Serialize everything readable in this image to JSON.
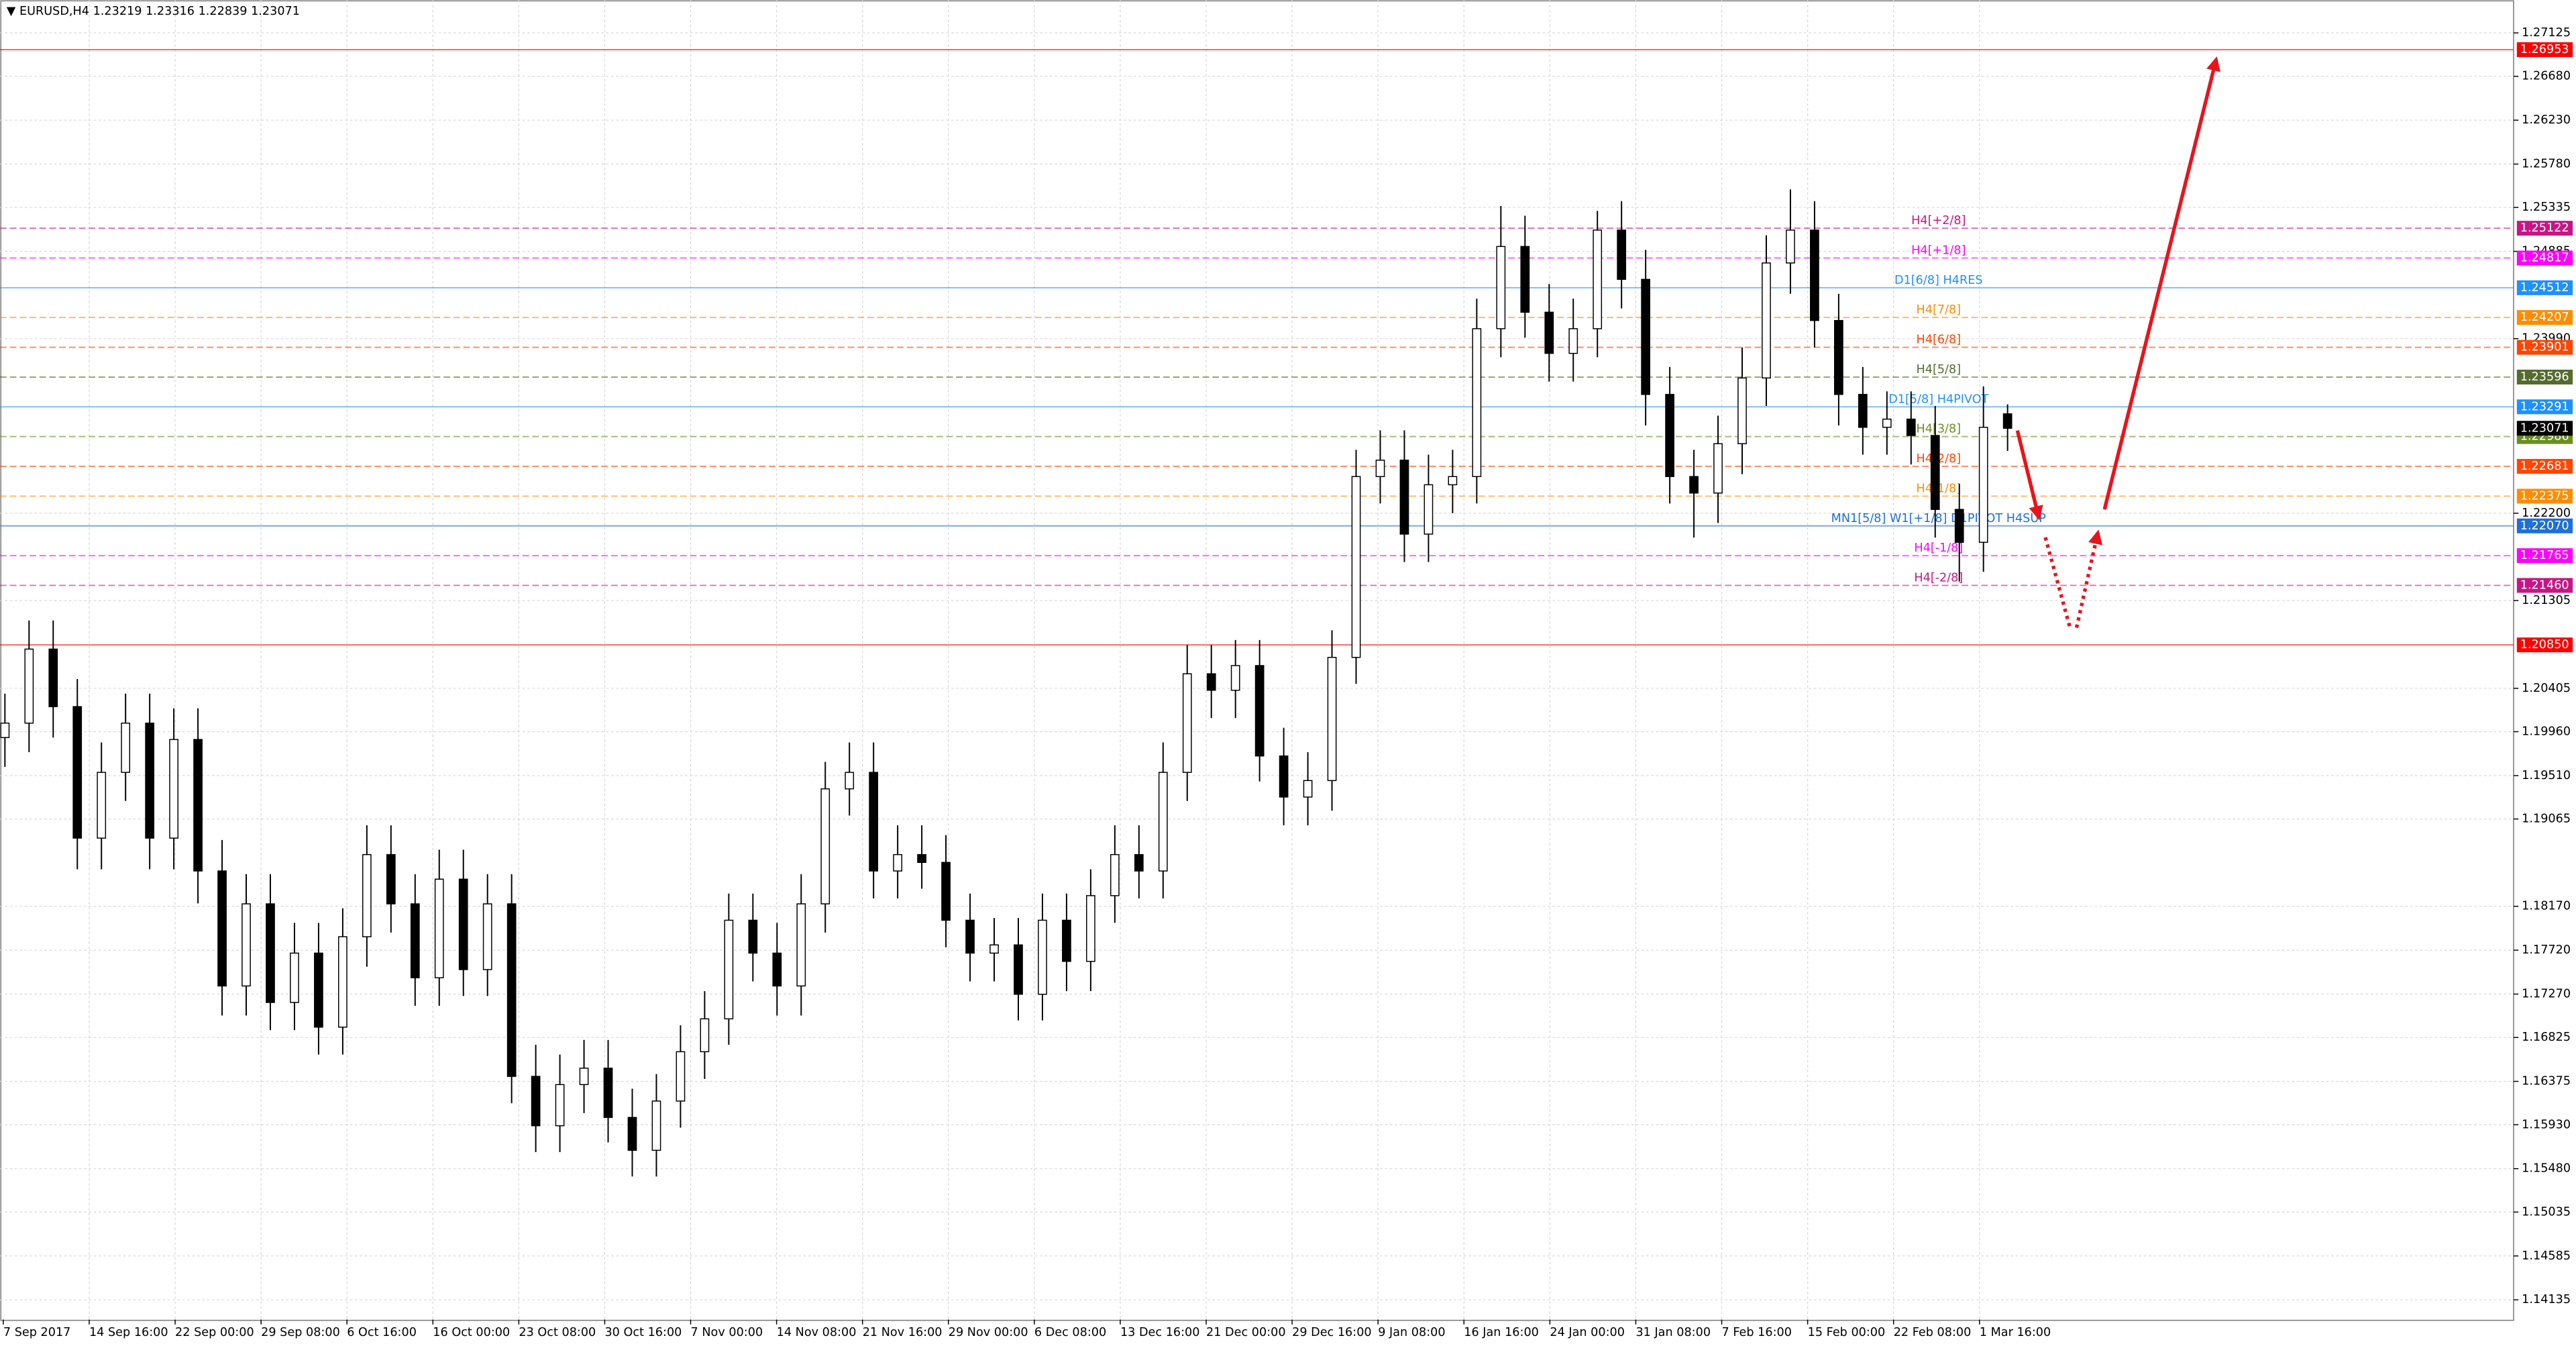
{
  "chart_data": {
    "type": "candlestick",
    "title": "EURUSD,H4",
    "ylim": [
      1.27462,
      1.13933
    ],
    "yticks": [
      {
        "value": 1.27125,
        "label": "1.27125"
      },
      {
        "value": 1.2668,
        "label": "1.26680"
      },
      {
        "value": 1.2623,
        "label": "1.26230"
      },
      {
        "value": 1.2578,
        "label": "1.25780"
      },
      {
        "value": 1.25335,
        "label": "1.25335"
      },
      {
        "value": 1.24885,
        "label": "1.24885"
      },
      {
        "value": 1.2399,
        "label": "1.23990"
      },
      {
        "value": 1.222,
        "label": "1.22200"
      },
      {
        "value": 1.21305,
        "label": "1.21305"
      },
      {
        "value": 1.20405,
        "label": "1.20405"
      },
      {
        "value": 1.1996,
        "label": "1.19960"
      },
      {
        "value": 1.1951,
        "label": "1.19510"
      },
      {
        "value": 1.19065,
        "label": "1.19065"
      },
      {
        "value": 1.1817,
        "label": "1.18170"
      },
      {
        "value": 1.1772,
        "label": "1.17720"
      },
      {
        "value": 1.1727,
        "label": "1.17270"
      },
      {
        "value": 1.16825,
        "label": "1.16825"
      },
      {
        "value": 1.16375,
        "label": "1.16375"
      },
      {
        "value": 1.1593,
        "label": "1.15930"
      },
      {
        "value": 1.1548,
        "label": "1.15480"
      },
      {
        "value": 1.15035,
        "label": "1.15035"
      },
      {
        "value": 1.14585,
        "label": "1.14585"
      },
      {
        "value": 1.14135,
        "label": "1.14135"
      }
    ],
    "xticks": [
      "7 Sep 2017",
      "14 Sep 16:00",
      "22 Sep 00:00",
      "29 Sep 08:00",
      "6 Oct 16:00",
      "16 Oct 00:00",
      "23 Oct 08:00",
      "30 Oct 16:00",
      "7 Nov 00:00",
      "14 Nov 08:00",
      "21 Nov 16:00",
      "29 Nov 00:00",
      "6 Dec 08:00",
      "13 Dec 16:00",
      "21 Dec 00:00",
      "29 Dec 16:00",
      "9 Jan 08:00",
      "16 Jan 16:00",
      "24 Jan 00:00",
      "31 Jan 08:00",
      "7 Feb 16:00",
      "15 Feb 00:00",
      "22 Feb 08:00",
      "1 Mar 16:00"
    ],
    "grid": true,
    "ohlc": [
      [
        1.199,
        1.2035,
        1.196,
        1.20048
      ],
      [
        1.20048,
        1.211,
        1.1975,
        1.20807
      ],
      [
        1.20807,
        1.211,
        1.199,
        1.20217
      ],
      [
        1.20217,
        1.205,
        1.1855,
        1.18869
      ],
      [
        1.18869,
        1.1985,
        1.1855,
        1.19543
      ],
      [
        1.19543,
        1.2035,
        1.1925,
        1.20048
      ],
      [
        1.20048,
        1.2035,
        1.1855,
        1.18869
      ],
      [
        1.18869,
        1.202,
        1.1855,
        1.1988
      ],
      [
        1.1988,
        1.202,
        1.182,
        1.18532
      ],
      [
        1.18532,
        1.1885,
        1.1705,
        1.17353
      ],
      [
        1.17353,
        1.185,
        1.1705,
        1.18195
      ],
      [
        1.18195,
        1.185,
        1.169,
        1.17184
      ],
      [
        1.17184,
        1.18,
        1.169,
        1.1769
      ],
      [
        1.1769,
        1.18,
        1.1665,
        1.16931
      ],
      [
        1.16931,
        1.1815,
        1.1665,
        1.17858
      ],
      [
        1.17858,
        1.19,
        1.1755,
        1.187
      ],
      [
        1.187,
        1.19,
        1.179,
        1.18195
      ],
      [
        1.18195,
        1.185,
        1.1715,
        1.17437
      ],
      [
        1.17437,
        1.1875,
        1.1715,
        1.18448
      ],
      [
        1.18448,
        1.1875,
        1.1725,
        1.17521
      ],
      [
        1.17521,
        1.185,
        1.1725,
        1.18195
      ],
      [
        1.18195,
        1.185,
        1.1615,
        1.16426
      ],
      [
        1.16426,
        1.1675,
        1.1565,
        1.1592
      ],
      [
        1.1592,
        1.1665,
        1.1565,
        1.16342
      ],
      [
        1.16342,
        1.168,
        1.1605,
        1.1651
      ],
      [
        1.1651,
        1.168,
        1.1575,
        1.16005
      ],
      [
        1.16005,
        1.163,
        1.154,
        1.15668
      ],
      [
        1.15668,
        1.1645,
        1.154,
        1.16173
      ],
      [
        1.16173,
        1.1695,
        1.159,
        1.16679
      ],
      [
        1.16679,
        1.173,
        1.164,
        1.17016
      ],
      [
        1.17016,
        1.183,
        1.1675,
        1.18027
      ],
      [
        1.18027,
        1.183,
        1.174,
        1.1769
      ],
      [
        1.1769,
        1.18,
        1.1705,
        1.17353
      ],
      [
        1.17353,
        1.185,
        1.1705,
        1.18195
      ],
      [
        1.18195,
        1.1965,
        1.179,
        1.19374
      ],
      [
        1.19374,
        1.1985,
        1.191,
        1.19543
      ],
      [
        1.19543,
        1.1985,
        1.1825,
        1.18532
      ],
      [
        1.18532,
        1.19,
        1.1825,
        1.187
      ],
      [
        1.187,
        1.19,
        1.1835,
        1.1862
      ],
      [
        1.1862,
        1.189,
        1.1775,
        1.18027
      ],
      [
        1.18027,
        1.183,
        1.174,
        1.1769
      ],
      [
        1.1769,
        1.1805,
        1.174,
        1.17774
      ],
      [
        1.17774,
        1.1805,
        1.17,
        1.17268
      ],
      [
        1.17268,
        1.183,
        1.17,
        1.18027
      ],
      [
        1.18027,
        1.183,
        1.173,
        1.17605
      ],
      [
        1.17605,
        1.1855,
        1.173,
        1.18279
      ],
      [
        1.18279,
        1.19,
        1.18,
        1.187
      ],
      [
        1.187,
        1.19,
        1.1825,
        1.18532
      ],
      [
        1.18532,
        1.1985,
        1.1825,
        1.19543
      ],
      [
        1.19543,
        1.2085,
        1.1925,
        1.20554
      ],
      [
        1.20554,
        1.2085,
        1.201,
        1.20385
      ],
      [
        1.20385,
        1.209,
        1.201,
        1.20638
      ],
      [
        1.20638,
        1.209,
        1.1945,
        1.19711
      ],
      [
        1.19711,
        1.2,
        1.19,
        1.1929
      ],
      [
        1.1929,
        1.1975,
        1.19,
        1.19459
      ],
      [
        1.19459,
        1.21,
        1.1915,
        1.20722
      ],
      [
        1.20722,
        1.2285,
        1.2045,
        1.22576
      ],
      [
        1.22576,
        1.2305,
        1.223,
        1.22744
      ],
      [
        1.22744,
        1.2305,
        1.217,
        1.21986
      ],
      [
        1.21986,
        1.228,
        1.217,
        1.22492
      ],
      [
        1.22492,
        1.2285,
        1.222,
        1.22576
      ],
      [
        1.22576,
        1.244,
        1.223,
        1.24092
      ],
      [
        1.24092,
        1.2535,
        1.238,
        1.24935
      ],
      [
        1.24935,
        1.2525,
        1.24,
        1.24261
      ],
      [
        1.24261,
        1.2455,
        1.2355,
        1.23839
      ],
      [
        1.23839,
        1.244,
        1.2355,
        1.24092
      ],
      [
        1.24092,
        1.253,
        1.238,
        1.25103
      ],
      [
        1.25103,
        1.254,
        1.243,
        1.24598
      ],
      [
        1.24598,
        1.249,
        1.231,
        1.23418
      ],
      [
        1.23418,
        1.237,
        1.223,
        1.22576
      ],
      [
        1.22576,
        1.2285,
        1.2195,
        1.22407
      ],
      [
        1.22407,
        1.232,
        1.221,
        1.22913
      ],
      [
        1.22913,
        1.239,
        1.226,
        1.23587
      ],
      [
        1.23587,
        1.2505,
        1.233,
        1.24766
      ],
      [
        1.24766,
        1.2552,
        1.2445,
        1.25103
      ],
      [
        1.25103,
        1.254,
        1.239,
        1.24176
      ],
      [
        1.24176,
        1.2445,
        1.231,
        1.23418
      ],
      [
        1.23418,
        1.237,
        1.228,
        1.23081
      ],
      [
        1.23081,
        1.2345,
        1.228,
        1.23165
      ],
      [
        1.23165,
        1.2345,
        1.227,
        1.22997
      ],
      [
        1.22997,
        1.233,
        1.2195,
        1.22239
      ],
      [
        1.22239,
        1.225,
        1.215,
        1.21902
      ],
      [
        1.21902,
        1.235,
        1.216,
        1.23081
      ],
      [
        1.23219,
        1.23316,
        1.22839,
        1.23071
      ]
    ],
    "levels": [
      {
        "value": 1.26953,
        "label": "1.26953",
        "color": "#ff0000",
        "dash": false,
        "text": null
      },
      {
        "value": 1.25122,
        "label": "1.25122",
        "color": "#c71585",
        "dash": true,
        "text": "H4[+2/8]"
      },
      {
        "value": 1.24817,
        "label": "1.24817",
        "color": "#ff00ff",
        "dash": true,
        "text": "H4[+1/8]"
      },
      {
        "value": 1.24512,
        "label": "1.24512",
        "color": "#1e90ff",
        "dash": false,
        "text": "D1[6/8] H4RES"
      },
      {
        "value": 1.24207,
        "label": "1.24207",
        "color": "#ff8c00",
        "dash": true,
        "text": "H4[7/8]"
      },
      {
        "value": 1.23901,
        "label": "1.23901",
        "color": "#ff4500",
        "dash": true,
        "text": "H4[6/8]"
      },
      {
        "value": 1.23596,
        "label": "1.23596",
        "color": "#556b2f",
        "dash": true,
        "text": "H4[5/8]"
      },
      {
        "value": 1.23291,
        "label": "1.23291",
        "color": "#1e90ff",
        "dash": false,
        "text": "D1[5/8] H4PIVOT"
      },
      {
        "value": 1.22986,
        "label": "1.22986",
        "color": "#6b8e23",
        "dash": true,
        "text": "H4[3/8]"
      },
      {
        "value": 1.22681,
        "label": "1.22681",
        "color": "#ff4500",
        "dash": true,
        "text": "H4[2/8]"
      },
      {
        "value": 1.22375,
        "label": "1.22375",
        "color": "#ff8c00",
        "dash": true,
        "text": "H4[1/8]"
      },
      {
        "value": 1.2207,
        "label": "1.22070",
        "color": "#1e6fd9",
        "dash": false,
        "text": "MN1[5/8] W1[+1/8] D1PIVOT H4SUP"
      },
      {
        "value": 1.21765,
        "label": "1.21765",
        "color": "#ff00ff",
        "dash": true,
        "text": "H4[-1/8]"
      },
      {
        "value": 1.2146,
        "label": "1.21460",
        "color": "#c71585",
        "dash": true,
        "text": "H4[-2/8]"
      },
      {
        "value": 1.2085,
        "label": "1.20850",
        "color": "#ff0000",
        "dash": false,
        "text": null
      }
    ]
  }
}
